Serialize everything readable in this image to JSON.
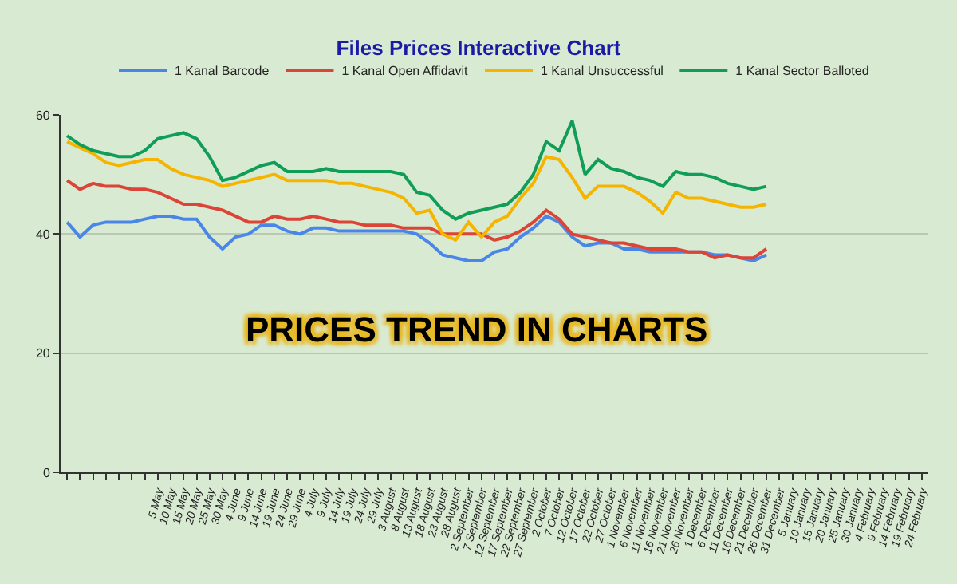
{
  "chart_data": {
    "type": "line",
    "title": "Files Prices Interactive Chart",
    "categories": [
      null,
      null,
      null,
      null,
      null,
      null,
      null,
      "5 May",
      "10 May",
      "15 May",
      "20 May",
      "25 May",
      "30 May",
      "4 June",
      "9 June",
      "14 June",
      "19 June",
      "24 June",
      "29 June",
      "4 July",
      "9 July",
      "14 July",
      "19 July",
      "24 July",
      "29 July",
      "3 August",
      "8 August",
      "13 August",
      "18 August",
      "23 August",
      "28 August",
      "2 September",
      "7 September",
      "12 September",
      "17 September",
      "22 September",
      "27 September",
      "2 October",
      "7 October",
      "12 October",
      "17 October",
      "22 October",
      "27 October",
      "1 November",
      "6 November",
      "11 November",
      "16 November",
      "21 November",
      "26 November",
      "1 December",
      "6 December",
      "11 December",
      "16 December",
      "21 December",
      "26 December",
      "31 December",
      "5 January",
      "10 January",
      "15 January",
      "20 January",
      "25 January",
      "30 January",
      "4 February",
      "9 February",
      "14 February",
      "19 February",
      "24 February"
    ],
    "series": [
      {
        "name": "1 Kanal Barcode",
        "color": "#4a86e8",
        "values": [
          42,
          39.5,
          41.5,
          42,
          42,
          42,
          42.5,
          43,
          43,
          42.5,
          42.5,
          39.5,
          37.5,
          39.5,
          40,
          41.5,
          41.5,
          40.5,
          40,
          41,
          41,
          40.5,
          40.5,
          40.5,
          40.5,
          40.5,
          40.5,
          40,
          38.5,
          36.5,
          36,
          35.5,
          35.5,
          37,
          37.5,
          39.5,
          41,
          43,
          42,
          39.5,
          38,
          38.5,
          38.5,
          37.5,
          37.5,
          37,
          37,
          37,
          37,
          37,
          36.5,
          36.5,
          36,
          35.5,
          36.5,
          null,
          null,
          null,
          null,
          null,
          null,
          null,
          null,
          null,
          null,
          null,
          null
        ]
      },
      {
        "name": "1 Kanal Open Affidavit",
        "color": "#db4437",
        "values": [
          49,
          47.5,
          48.5,
          48,
          48,
          47.5,
          47.5,
          47,
          46,
          45,
          45,
          44.5,
          44,
          43,
          42,
          42,
          43,
          42.5,
          42.5,
          43,
          42.5,
          42,
          42,
          41.5,
          41.5,
          41.5,
          41,
          41,
          41,
          40,
          40,
          40,
          40,
          39,
          39.5,
          40.5,
          42,
          44,
          42.5,
          40,
          39.5,
          39,
          38.5,
          38.5,
          38,
          37.5,
          37.5,
          37.5,
          37,
          37,
          36,
          36.5,
          36,
          36,
          37.5,
          null,
          null,
          null,
          null,
          null,
          null,
          null,
          null,
          null,
          null,
          null,
          null
        ]
      },
      {
        "name": "1 Kanal Unsuccessful",
        "color": "#f4b400",
        "values": [
          55.5,
          54.5,
          53.5,
          52,
          51.5,
          52,
          52.5,
          52.5,
          51,
          50,
          49.5,
          49,
          48,
          48.5,
          49,
          49.5,
          50,
          49,
          49,
          49,
          49,
          48.5,
          48.5,
          48,
          47.5,
          47,
          46,
          43.5,
          44,
          40,
          39,
          42,
          39.5,
          42,
          43,
          46,
          48.5,
          53,
          52.5,
          49.5,
          46,
          48,
          48,
          48,
          47,
          45.5,
          43.5,
          47,
          46,
          46,
          45.5,
          45,
          44.5,
          44.5,
          45,
          null,
          null,
          null,
          null,
          null,
          null,
          null,
          null,
          null,
          null,
          null,
          null
        ]
      },
      {
        "name": "1 Kanal Sector Balloted",
        "color": "#0f9d58",
        "values": [
          56.5,
          55,
          54,
          53.5,
          53,
          53,
          54,
          56,
          56.5,
          57,
          56,
          53,
          49,
          49.5,
          50.5,
          51.5,
          52,
          50.5,
          50.5,
          50.5,
          51,
          50.5,
          50.5,
          50.5,
          50.5,
          50.5,
          50,
          47,
          46.5,
          44,
          42.5,
          43.5,
          44,
          44.5,
          45,
          47,
          50,
          55.5,
          54,
          59,
          50,
          52.5,
          51,
          50.5,
          49.5,
          49,
          48,
          50.5,
          50,
          50,
          49.5,
          48.5,
          48,
          47.5,
          48,
          null,
          null,
          null,
          null,
          null,
          null,
          null,
          null,
          null,
          null,
          null,
          null
        ]
      }
    ],
    "ylim": [
      0,
      60
    ],
    "yticks": [
      0,
      20,
      40,
      60
    ],
    "grid": "y",
    "legend": "top",
    "line_style": "solid",
    "annotations": [
      "PRICES TREND IN CHARTS"
    ]
  }
}
